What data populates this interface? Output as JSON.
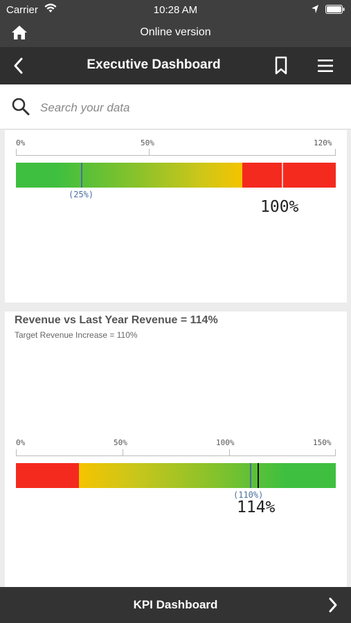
{
  "status_bar": {
    "carrier": "Carrier",
    "time": "10:28 AM"
  },
  "online_bar": {
    "label": "Online version"
  },
  "nav": {
    "title": "Executive Dashboard"
  },
  "search": {
    "placeholder": "Search your data"
  },
  "gauge1": {
    "ticks": [
      "0%",
      "50%",
      "120%"
    ],
    "target_label": "(25%)",
    "value_label": "100%",
    "value_fraction": 1.0,
    "target_fraction": 0.25,
    "colors": {
      "green": "#3fbf3f",
      "yellow": "#f5c400",
      "red": "#f42a1e"
    }
  },
  "gauge2": {
    "title": "Revenue vs Last Year Revenue = 114%",
    "subtitle": "Target Revenue Increase = 110%",
    "ticks": [
      "0%",
      "50%",
      "100%",
      "150%"
    ],
    "target_label": "(110%)",
    "value_label": "114%",
    "value_fraction": 1.14,
    "target_fraction": 1.1,
    "colors": {
      "red": "#f42a1e",
      "yellow": "#f5c400",
      "green": "#3fbf3f",
      "marker": "#111111"
    }
  },
  "bottom_bar": {
    "label": "KPI Dashboard"
  },
  "icons": {
    "wifi": "wifi-icon",
    "location": "location-arrow-icon",
    "battery": "battery-icon",
    "home": "home-icon",
    "back": "chevron-left-icon",
    "bookmark": "bookmark-icon",
    "menu": "hamburger-menu-icon",
    "search": "search-icon",
    "forward": "chevron-right-icon"
  }
}
